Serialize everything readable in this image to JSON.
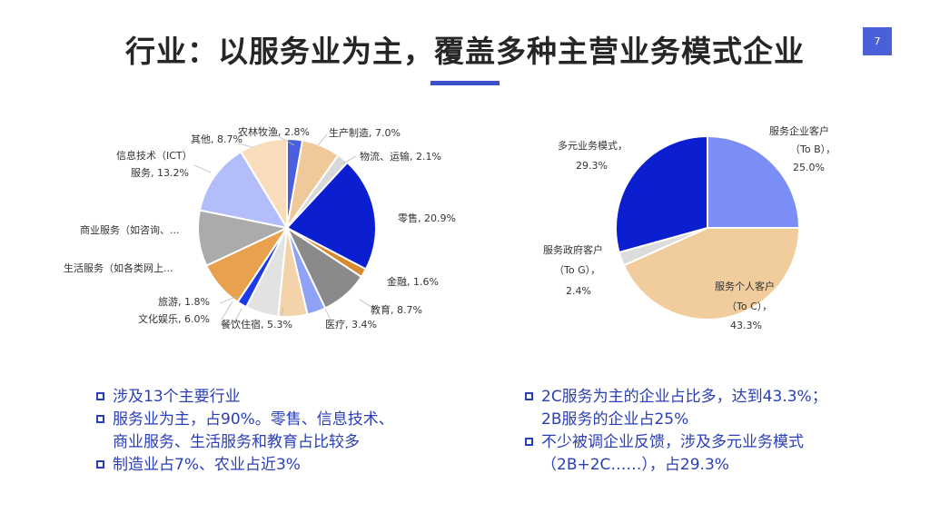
{
  "title": "行业：以服务业为主，覆盖多种主营业务模式企业",
  "page_number": "7",
  "chart_data": [
    {
      "type": "pie",
      "slices": [
        {
          "label": "农林牧渔, 2.8%",
          "value": 2.8,
          "color": "#4a5ee0"
        },
        {
          "label": "生产制造, 7.0%",
          "value": 7.0,
          "color": "#efc99a"
        },
        {
          "label": "物流、运输, 2.1%",
          "value": 2.1,
          "color": "#d8d8d8"
        },
        {
          "label": "零售, 20.9%",
          "value": 20.9,
          "color": "#0b1fd0"
        },
        {
          "label": "金融, 1.6%",
          "value": 1.6,
          "color": "#d98a2e"
        },
        {
          "label": "教育, 8.7%",
          "value": 8.7,
          "color": "#8a8a8a"
        },
        {
          "label": "医疗, 3.4%",
          "value": 3.4,
          "color": "#8fa2f5"
        },
        {
          "label": "餐饮住宿, 5.3%",
          "value": 5.3,
          "color": "#f3d3a9"
        },
        {
          "label": "文化娱乐, 6.0%",
          "value": 6.0,
          "color": "#e2e2e2"
        },
        {
          "label": "旅游, 1.8%",
          "value": 1.8,
          "color": "#1e3ae8"
        },
        {
          "label": "生活服务（如各类网上...",
          "value": 8.7,
          "color": "#e8a24e"
        },
        {
          "label": "商业服务（如咨询、...",
          "value": 10.2,
          "color": "#ababab"
        },
        {
          "label": "信息技术（ICT）服务, 13.2%",
          "value": 13.2,
          "color": "#b3bdfa"
        },
        {
          "label": "其他, 8.7%",
          "value": 8.7,
          "color": "#f8dcbc"
        }
      ]
    },
    {
      "type": "pie",
      "slices": [
        {
          "label": "服务企业客户（To B），25.0%",
          "value": 25.0,
          "color": "#7b8ef5"
        },
        {
          "label": "服务个人客户（To C），43.3%",
          "value": 43.3,
          "color": "#f1cc9c"
        },
        {
          "label": "服务政府客户（To G），2.4%",
          "value": 2.4,
          "color": "#dcdcdc"
        },
        {
          "label": "多元业务模式，29.3%",
          "value": 29.3,
          "color": "#0b1fd0"
        }
      ]
    }
  ],
  "left_labels": [
    "农林牧渔, 2.8%",
    "生产制造, 7.0%",
    "物流、运输, 2.1%",
    "零售, 20.9%",
    "金融, 1.6%",
    "教育, 8.7%",
    "医疗, 3.4%",
    "餐饮住宿, 5.3%",
    "文化娱乐, 6.0%",
    "旅游, 1.8%",
    "生活服务（如各类网上...",
    "商业服务（如咨询、...",
    "信息技术（ICT）",
    "服务, 13.2%",
    "其他, 8.7%"
  ],
  "right_labels": [
    "服务企业客户",
    "（To B），",
    "25.0%",
    "服务个人客户",
    "（To C），",
    "43.3%",
    "服务政府客户",
    "（To G），",
    "2.4%",
    "多元业务模式，",
    "29.3%"
  ],
  "bullets_left": [
    "涉及13个主要行业",
    "服务业为主，占90%。零售、信息技术、",
    "商业服务、生活服务和教育占比较多",
    "制造业占7%、农业占近3%"
  ],
  "bullets_right": [
    "2C服务为主的企业占比多，达到43.3%；",
    "2B服务的企业占25%",
    "不少被调企业反馈，涉及多元业务模式",
    "（2B+2C……），占29.3%"
  ]
}
